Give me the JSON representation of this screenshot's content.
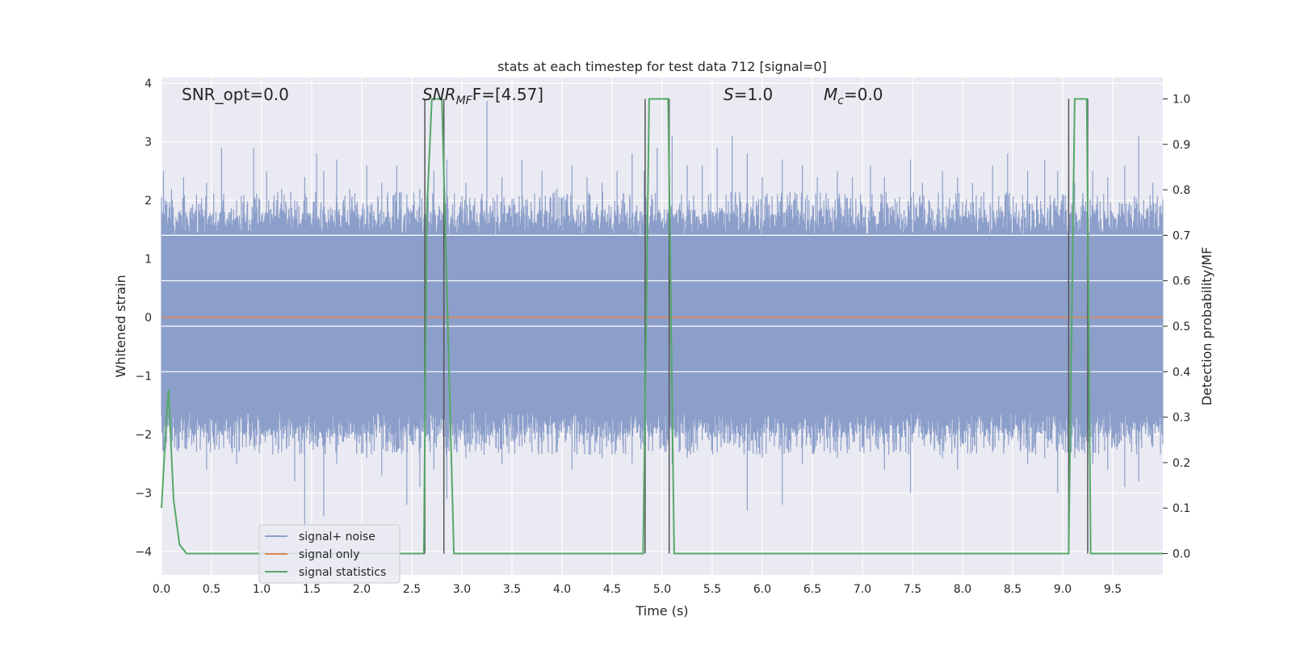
{
  "chart_data": {
    "type": "line",
    "title": "stats at each timestep for test data 712 [signal=0]",
    "xlabel": "Time (s)",
    "ylabel": "Whitened strain",
    "y2label": "Detection probability/MF",
    "xlim": [
      0.0,
      10.0
    ],
    "ylim": [
      -4.4,
      4.1
    ],
    "y2lim": [
      -0.047,
      1.047
    ],
    "xticks": [
      0.0,
      0.5,
      1.0,
      1.5,
      2.0,
      2.5,
      3.0,
      3.5,
      4.0,
      4.5,
      5.0,
      5.5,
      6.0,
      6.5,
      7.0,
      7.5,
      8.0,
      8.5,
      9.0,
      9.5
    ],
    "xtick_labels": [
      "0.0",
      "0.5",
      "1.0",
      "1.5",
      "2.0",
      "2.5",
      "3.0",
      "3.5",
      "4.0",
      "4.5",
      "5.0",
      "5.5",
      "6.0",
      "6.5",
      "7.0",
      "7.5",
      "8.0",
      "8.5",
      "9.0",
      "9.5"
    ],
    "yticks": [
      4,
      3,
      2,
      1,
      0,
      -1,
      -2,
      -3,
      -4
    ],
    "ytick_labels": [
      "4",
      "3",
      "2",
      "1",
      "0",
      "−1",
      "−2",
      "−3",
      "−4"
    ],
    "y2ticks": [
      1.0,
      0.9,
      0.8,
      0.7,
      0.6,
      0.5,
      0.4,
      0.3,
      0.2,
      0.1,
      0.0
    ],
    "y2tick_labels": [
      "1.0",
      "0.9",
      "0.8",
      "0.7",
      "0.6",
      "0.5",
      "0.4",
      "0.3",
      "0.2",
      "0.1",
      "0.0"
    ],
    "grid": true,
    "legend_position": "lower-left",
    "noise": {
      "name": "signal+ noise",
      "color": "#8c9fca",
      "band": [
        -1.6,
        1.4
      ],
      "spikes": [
        [
          0.02,
          2.5,
          -2.0
        ],
        [
          0.1,
          2.2,
          -1.6
        ],
        [
          0.22,
          2.4,
          -1.9
        ],
        [
          0.35,
          2.1,
          -2.3
        ],
        [
          0.45,
          2.3,
          -2.6
        ],
        [
          0.6,
          2.9,
          -2.0
        ],
        [
          0.75,
          2.0,
          -2.5
        ],
        [
          0.92,
          2.9,
          -2.2
        ],
        [
          1.05,
          2.5,
          -1.7
        ],
        [
          1.2,
          2.2,
          -2.3
        ],
        [
          1.33,
          2.0,
          -2.8
        ],
        [
          1.43,
          2.4,
          -3.6
        ],
        [
          1.55,
          2.8,
          -2.2
        ],
        [
          1.62,
          2.5,
          -3.4
        ],
        [
          1.75,
          2.7,
          -2.5
        ],
        [
          1.88,
          2.2,
          -2.0
        ],
        [
          2.05,
          2.6,
          -2.4
        ],
        [
          2.2,
          2.3,
          -2.7
        ],
        [
          2.35,
          2.6,
          -2.3
        ],
        [
          2.45,
          2.1,
          -3.2
        ],
        [
          2.58,
          2.2,
          -2.9
        ],
        [
          2.72,
          2.5,
          -2.6
        ],
        [
          2.85,
          2.7,
          -3.1
        ],
        [
          3.04,
          2.3,
          -2.4
        ],
        [
          3.25,
          3.7,
          -2.0
        ],
        [
          3.4,
          2.4,
          -2.5
        ],
        [
          3.6,
          2.7,
          -2.2
        ],
        [
          3.8,
          2.5,
          -1.9
        ],
        [
          3.95,
          2.2,
          -2.3
        ],
        [
          4.1,
          2.6,
          -2.6
        ],
        [
          4.25,
          2.4,
          -2.1
        ],
        [
          4.4,
          2.3,
          -2.4
        ],
        [
          4.55,
          2.5,
          -2.0
        ],
        [
          4.7,
          2.8,
          -2.5
        ],
        [
          4.82,
          2.5,
          -2.2
        ],
        [
          4.95,
          2.9,
          -1.9
        ],
        [
          5.1,
          3.1,
          -2.5
        ],
        [
          5.25,
          2.6,
          -2.4
        ],
        [
          5.4,
          2.6,
          -2.1
        ],
        [
          5.55,
          2.9,
          -2.3
        ],
        [
          5.7,
          3.1,
          -2.0
        ],
        [
          5.85,
          2.8,
          -3.3
        ],
        [
          6.0,
          2.4,
          -2.4
        ],
        [
          6.2,
          2.7,
          -3.2
        ],
        [
          6.4,
          2.6,
          -2.5
        ],
        [
          6.55,
          2.4,
          -2.1
        ],
        [
          6.75,
          2.5,
          -2.4
        ],
        [
          6.9,
          2.4,
          -2.0
        ],
        [
          7.08,
          2.6,
          -2.3
        ],
        [
          7.22,
          2.4,
          -2.6
        ],
        [
          7.48,
          2.7,
          -3.0
        ],
        [
          7.6,
          2.3,
          -2.1
        ],
        [
          7.8,
          2.5,
          -2.4
        ],
        [
          7.95,
          2.4,
          -2.6
        ],
        [
          8.1,
          2.3,
          -2.2
        ],
        [
          8.3,
          2.6,
          -2.3
        ],
        [
          8.45,
          2.8,
          -2.0
        ],
        [
          8.65,
          2.5,
          -2.5
        ],
        [
          8.82,
          2.7,
          -2.4
        ],
        [
          8.95,
          2.5,
          -3.0
        ],
        [
          9.12,
          2.3,
          -2.4
        ],
        [
          9.3,
          2.5,
          -2.5
        ],
        [
          9.45,
          2.4,
          -2.6
        ],
        [
          9.62,
          2.6,
          -2.9
        ],
        [
          9.76,
          3.1,
          -2.8
        ],
        [
          9.9,
          2.3,
          -2.2
        ]
      ]
    },
    "signal_only": {
      "name": "signal only",
      "color": "#dd8452",
      "y": 0.0
    },
    "statistics": {
      "name": "signal statistics",
      "color": "#55a868",
      "points": [
        [
          0.0,
          0.1
        ],
        [
          0.05,
          0.3
        ],
        [
          0.07,
          0.36
        ],
        [
          0.12,
          0.12
        ],
        [
          0.18,
          0.02
        ],
        [
          0.25,
          0.0
        ],
        [
          2.62,
          0.0
        ],
        [
          2.65,
          0.75
        ],
        [
          2.7,
          1.0
        ],
        [
          2.8,
          1.0
        ],
        [
          2.92,
          0.0
        ],
        [
          4.81,
          0.0
        ],
        [
          4.87,
          1.0
        ],
        [
          5.06,
          1.0
        ],
        [
          5.12,
          0.0
        ],
        [
          9.06,
          0.0
        ],
        [
          9.12,
          1.0
        ],
        [
          9.24,
          1.0
        ],
        [
          9.28,
          0.0
        ],
        [
          10.0,
          0.0
        ]
      ]
    },
    "vertical_lines": {
      "color": "#555555",
      "x": [
        2.63,
        2.82,
        4.83,
        5.07,
        9.06,
        9.25
      ]
    },
    "annotations": {
      "snr_opt": "SNR_opt=0.0",
      "snr_mf_main": "SNR",
      "snr_mf_sub": "MF",
      "snr_mf_val": "F=[4.57]",
      "s_main": "S",
      "s_val": "=1.0",
      "mc_main": "M",
      "mc_sub": "c",
      "mc_val": "=0.0"
    },
    "legend": [
      {
        "label": "signal+ noise",
        "color": "#8c9fca"
      },
      {
        "label": "signal only",
        "color": "#dd8452"
      },
      {
        "label": "signal statistics",
        "color": "#55a868"
      }
    ]
  }
}
